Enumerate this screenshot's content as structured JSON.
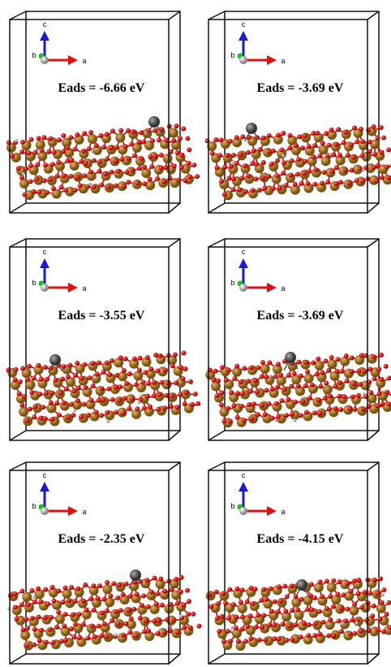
{
  "panels": [
    {
      "energy": "Eads = -6.66 eV",
      "axes": {
        "c": "c",
        "b": "b",
        "a": "a"
      }
    },
    {
      "energy": "Eads = -3.69 eV",
      "axes": {
        "c": "c",
        "b": "b",
        "a": "a"
      }
    },
    {
      "energy": "Eads = -3.55 eV",
      "axes": {
        "c": "c",
        "b": "b",
        "a": "a"
      }
    },
    {
      "energy": "Eads = -3.69 eV",
      "axes": {
        "c": "c",
        "b": "b",
        "a": "a"
      }
    },
    {
      "energy": "Eads = -2.35 eV",
      "axes": {
        "c": "c",
        "b": "b",
        "a": "a"
      }
    },
    {
      "energy": "Eads = -4.15 eV",
      "axes": {
        "c": "c",
        "b": "b",
        "a": "a"
      }
    }
  ]
}
